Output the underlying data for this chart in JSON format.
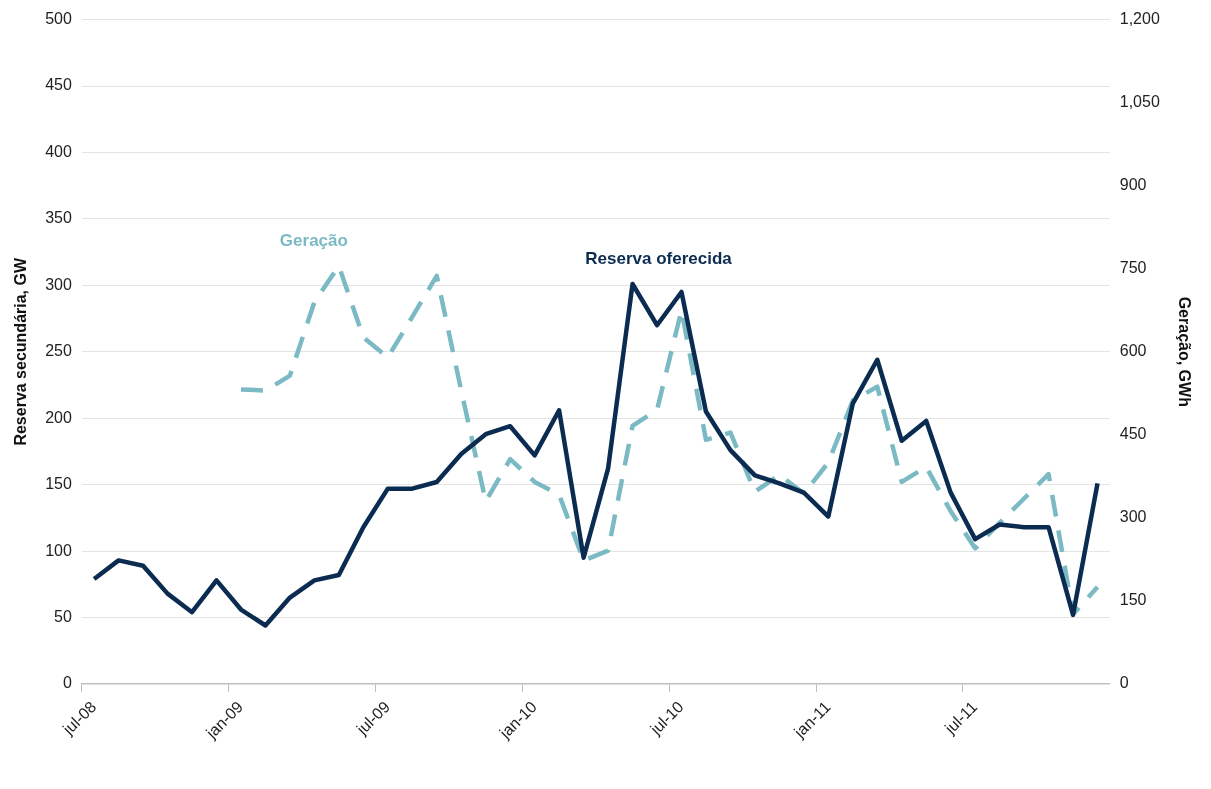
{
  "chart_data": {
    "type": "line",
    "ylabel": "Reserva secundária, GW",
    "y2label": "Geração, GWh",
    "categories": [
      "jul-08",
      null,
      null,
      null,
      null,
      null,
      "jan-09",
      null,
      null,
      null,
      null,
      null,
      "jul-09",
      null,
      null,
      null,
      null,
      null,
      "jan-10",
      null,
      null,
      null,
      null,
      null,
      "jul-10",
      null,
      null,
      null,
      null,
      null,
      "jan-11",
      null,
      null,
      null,
      null,
      null,
      "jul-11",
      null,
      null,
      null,
      null,
      null
    ],
    "series": [
      {
        "name": "Reserva oferecida",
        "color": "#0b2c50",
        "line_style": "solid",
        "values": [
          79,
          93,
          89,
          68,
          54,
          78,
          56,
          44,
          65,
          78,
          82,
          118,
          147,
          147,
          152,
          173,
          188,
          194,
          172,
          206,
          95,
          162,
          301,
          270,
          295,
          205,
          176,
          157,
          151,
          144,
          126,
          211,
          244,
          183,
          198,
          144,
          109,
          120,
          118,
          118,
          52,
          151
        ]
      },
      {
        "name": "Geração",
        "color": "#7bbac4",
        "line_style": "dashed",
        "axis": "y2",
        "values": [
          null,
          null,
          null,
          null,
          null,
          null,
          532,
          530,
          557,
          690,
          755,
          626,
          590,
          663,
          737,
          530,
          330,
          406,
          365,
          342,
          223,
          241,
          466,
          495,
          675,
          441,
          454,
          347,
          378,
          344,
          400,
          512,
          537,
          365,
          392,
          312,
          245,
          291,
          335,
          379,
          126,
          175
        ]
      }
    ],
    "ylim": [
      0,
      500
    ],
    "yticks": [
      0,
      50,
      100,
      150,
      200,
      250,
      300,
      350,
      400,
      450,
      500
    ],
    "y2lim": [
      0,
      1200
    ],
    "y2ticks": [
      0,
      150,
      300,
      450,
      600,
      750,
      900,
      {
        "value": 1050,
        "label": "1,050"
      },
      {
        "value": 1200,
        "label": "1,200"
      }
    ],
    "grid": "y",
    "legend": false,
    "marker": "none"
  }
}
